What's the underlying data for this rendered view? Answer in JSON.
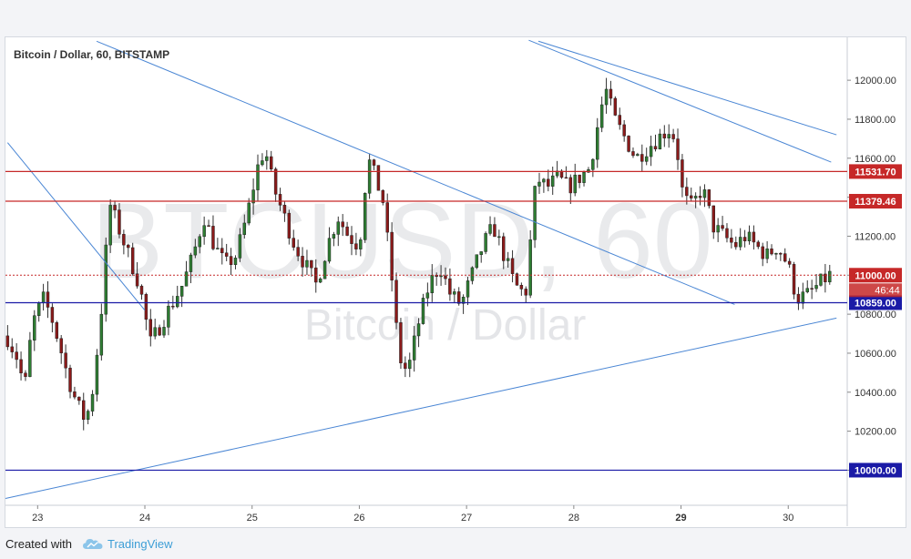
{
  "chart_data": {
    "type": "candlestick",
    "title": "Bitcoin / Dollar, 60, BITSTAMP",
    "watermark_symbol": "BTCUSD, 60",
    "watermark_name": "Bitcoin / Dollar",
    "x_ticks": [
      "23",
      "24",
      "25",
      "26",
      "27",
      "28",
      "29",
      "30"
    ],
    "x_tick_bold": "29",
    "y_ticks": [
      "12000.00",
      "11800.00",
      "11600.00",
      "11400.00",
      "11200.00",
      "11000.00",
      "10800.00",
      "10600.00",
      "10400.00",
      "10200.00",
      "10000.00"
    ],
    "ylim": [
      9820,
      12220
    ],
    "xlim": [
      22.7,
      30.55
    ],
    "up_color": "#2e7d32",
    "down_color": "#8b1a1a",
    "horizontal_levels": [
      {
        "value": 11531.7,
        "label": "11531.70",
        "color": "#c62828"
      },
      {
        "value": 11379.46,
        "label": "11379.46",
        "color": "#c62828"
      },
      {
        "value": 10859.0,
        "label": "10859.00",
        "color": "#1a1aa6"
      },
      {
        "value": 10000.0,
        "label": "10000.00",
        "color": "#1a1aa6"
      }
    ],
    "last_price": {
      "value": 11000.0,
      "label": "11000.00",
      "countdown": "46:44",
      "color": "#c62828"
    },
    "trendlines": [
      {
        "x1": 22.72,
        "y1": 11680,
        "x2": 24.0,
        "y2": 10820
      },
      {
        "x1": 23.55,
        "y1": 12200,
        "x2": 29.5,
        "y2": 10850
      },
      {
        "x1": 27.58,
        "y1": 12205,
        "x2": 30.4,
        "y2": 11580
      },
      {
        "x1": 27.67,
        "y1": 12200,
        "x2": 30.45,
        "y2": 11720
      },
      {
        "x1": 22.7,
        "y1": 9855,
        "x2": 30.45,
        "y2": 10780
      }
    ],
    "price_path": [
      [
        22.7,
        10700
      ],
      [
        22.8,
        10590
      ],
      [
        22.88,
        10420
      ],
      [
        22.95,
        10750
      ],
      [
        23.05,
        10880
      ],
      [
        23.12,
        10800
      ],
      [
        23.2,
        10650
      ],
      [
        23.28,
        10480
      ],
      [
        23.36,
        10350
      ],
      [
        23.45,
        10250
      ],
      [
        23.52,
        10430
      ],
      [
        23.6,
        10850
      ],
      [
        23.67,
        11370
      ],
      [
        23.75,
        11250
      ],
      [
        23.85,
        11100
      ],
      [
        23.95,
        10950
      ],
      [
        24.05,
        10650
      ],
      [
        24.15,
        10750
      ],
      [
        24.25,
        10850
      ],
      [
        24.35,
        10950
      ],
      [
        24.45,
        11100
      ],
      [
        24.55,
        11300
      ],
      [
        24.65,
        11150
      ],
      [
        24.75,
        11050
      ],
      [
        24.85,
        11100
      ],
      [
        24.95,
        11300
      ],
      [
        25.05,
        11550
      ],
      [
        25.12,
        11650
      ],
      [
        25.2,
        11450
      ],
      [
        25.3,
        11300
      ],
      [
        25.4,
        11150
      ],
      [
        25.5,
        11050
      ],
      [
        25.6,
        10950
      ],
      [
        25.7,
        11150
      ],
      [
        25.8,
        11300
      ],
      [
        25.9,
        11200
      ],
      [
        26.0,
        11150
      ],
      [
        26.08,
        11600
      ],
      [
        26.15,
        11500
      ],
      [
        26.22,
        11380
      ],
      [
        26.3,
        11000
      ],
      [
        26.37,
        10580
      ],
      [
        26.45,
        10500
      ],
      [
        26.55,
        10750
      ],
      [
        26.65,
        10950
      ],
      [
        26.75,
        11050
      ],
      [
        26.85,
        10900
      ],
      [
        26.95,
        10850
      ],
      [
        27.05,
        11000
      ],
      [
        27.15,
        11150
      ],
      [
        27.25,
        11250
      ],
      [
        27.35,
        11100
      ],
      [
        27.45,
        10950
      ],
      [
        27.55,
        10900
      ],
      [
        27.65,
        11500
      ],
      [
        27.75,
        11450
      ],
      [
        27.85,
        11500
      ],
      [
        27.95,
        11450
      ],
      [
        28.05,
        11500
      ],
      [
        28.15,
        11550
      ],
      [
        28.25,
        11850
      ],
      [
        28.3,
        11950
      ],
      [
        28.38,
        11800
      ],
      [
        28.48,
        11700
      ],
      [
        28.58,
        11600
      ],
      [
        28.68,
        11650
      ],
      [
        28.78,
        11700
      ],
      [
        28.88,
        11750
      ],
      [
        28.95,
        11700
      ],
      [
        29.02,
        11400
      ],
      [
        29.1,
        11350
      ],
      [
        29.2,
        11450
      ],
      [
        29.3,
        11250
      ],
      [
        29.4,
        11200
      ],
      [
        29.5,
        11150
      ],
      [
        29.6,
        11200
      ],
      [
        29.7,
        11150
      ],
      [
        29.8,
        11100
      ],
      [
        29.9,
        11150
      ],
      [
        30.0,
        11050
      ],
      [
        30.08,
        10880
      ],
      [
        30.18,
        10900
      ],
      [
        30.28,
        10950
      ],
      [
        30.38,
        11000
      ]
    ]
  },
  "footer": {
    "created_with": "Created with",
    "brand": "TradingView"
  }
}
